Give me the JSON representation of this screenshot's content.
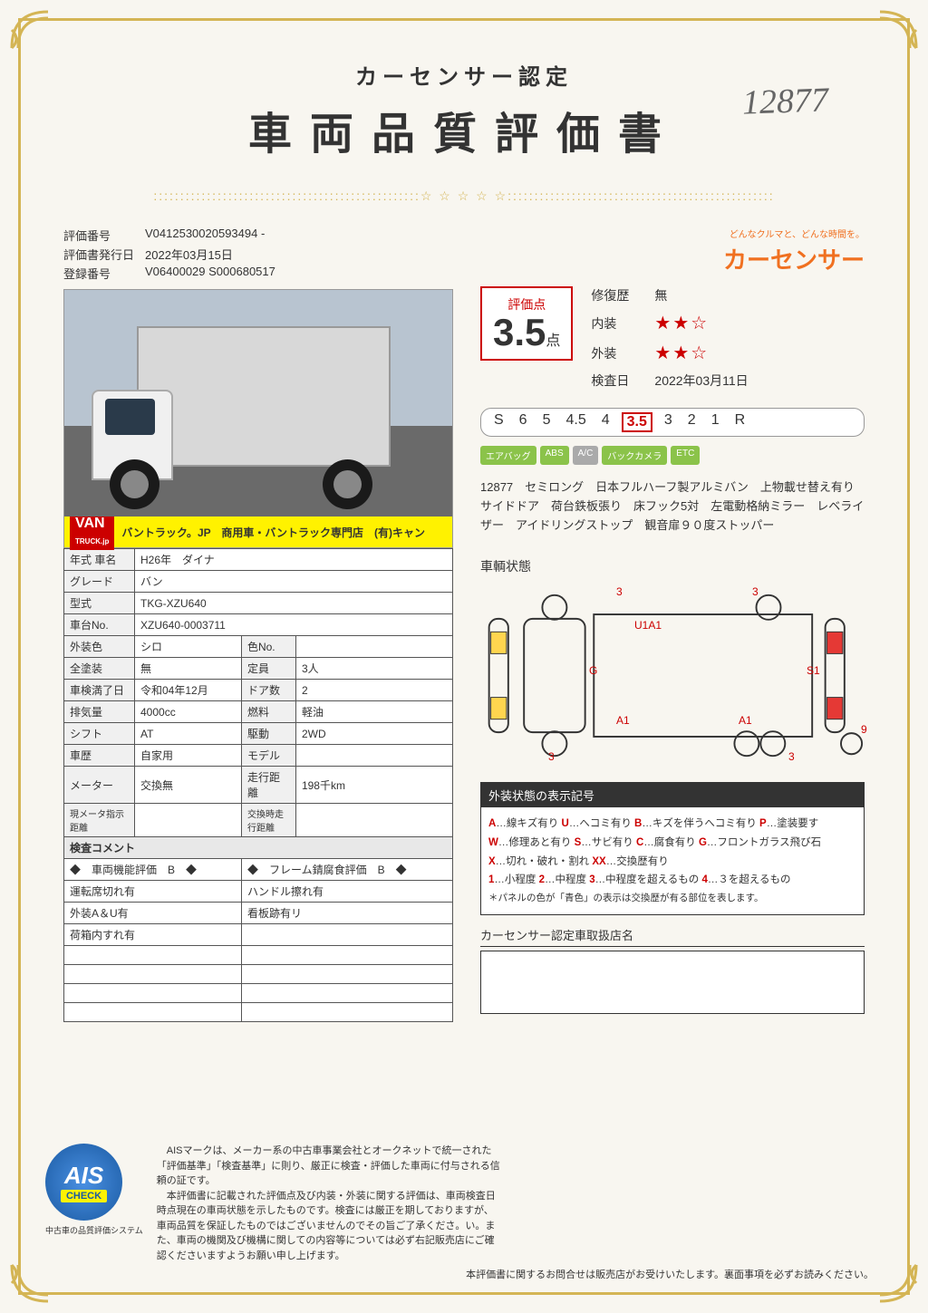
{
  "header": {
    "cert_label": "カーセンサー認定",
    "title": "車両品質評価書",
    "handwritten_id": "12877"
  },
  "brand": {
    "tagline": "どんなクルマと、どんな時間を。",
    "name": "カーセンサー"
  },
  "ids": {
    "eval_no_lbl": "評価番号",
    "eval_no": "V0412530020593494 -",
    "issue_date_lbl": "評価書発行日",
    "issue_date": "2022年03月15日",
    "reg_no_lbl": "登録番号",
    "reg_no": "V06400029 S000680517"
  },
  "photo_banner": {
    "logo1": "VAN",
    "logo2": "TRUCK.jp",
    "text": "バントラック。JP　商用車・バントラック専門店　(有)キャン"
  },
  "specs": {
    "year_name_lbl": "年式 車名",
    "year_name": "H26年　ダイナ",
    "grade_lbl": "グレード",
    "grade": "バン",
    "model_lbl": "型式",
    "model": "TKG-XZU640",
    "chassis_lbl": "車台No.",
    "chassis": "XZU640-0003711",
    "ext_color_lbl": "外装色",
    "ext_color": "シロ",
    "color_no_lbl": "色No.",
    "color_no": "",
    "full_paint_lbl": "全塗装",
    "full_paint": "無",
    "capacity_lbl": "定員",
    "capacity": "3人",
    "inspect_lbl": "車検満了日",
    "inspect": "令和04年12月",
    "doors_lbl": "ドア数",
    "doors": "2",
    "displace_lbl": "排気量",
    "displace": "4000cc",
    "fuel_lbl": "燃料",
    "fuel": "軽油",
    "shift_lbl": "シフト",
    "shift": "AT",
    "drive_lbl": "駆動",
    "drive": "2WD",
    "history_lbl": "車歴",
    "history": "自家用",
    "modelc_lbl": "モデル",
    "modelc": "",
    "meter_lbl": "メーター",
    "meter": "交換無",
    "mileage_lbl": "走行距離",
    "mileage": "198千km",
    "curr_meter_lbl": "現メータ指示距離",
    "curr_meter": "",
    "swap_meter_lbl": "交換時走行距離",
    "swap_meter": ""
  },
  "inspect": {
    "comment_lbl": "検査コメント",
    "func_lbl": "◆　車両機能評価　B　◆",
    "frame_lbl": "◆　フレーム錆腐食評価　B　◆",
    "r1a": "運転席切れ有",
    "r1b": "ハンドル擦れ有",
    "r2a": "外装A＆U有",
    "r2b": "看板跡有リ",
    "r3a": "荷箱内すれ有",
    "r3b": ""
  },
  "score": {
    "label": "評価点",
    "value": "3.5",
    "unit": "点",
    "repair_lbl": "修復歴",
    "repair": "無",
    "interior_lbl": "内装",
    "interior_stars": "★★☆",
    "exterior_lbl": "外装",
    "exterior_stars": "★★☆",
    "date_lbl": "検査日",
    "date": "2022年03月11日"
  },
  "grade_bar": [
    "S",
    "6",
    "5",
    "4.5",
    "4",
    "3.5",
    "3",
    "2",
    "1",
    "R"
  ],
  "grade_selected": "3.5",
  "features": [
    "エアバッグ",
    "ABS",
    "A/C",
    "バックカメラ",
    "ETC"
  ],
  "description": "12877　セミロング　日本フルハーフ製アルミバン　上物載せ替え有り　サイドドア　荷台鉄板張り　床フック5対　左電動格納ミラー　レベライザー　アイドリングストップ　観音扉９０度ストッパー",
  "diagram": {
    "title": "車輌状態",
    "marks": {
      "m1": "3",
      "m2": "3",
      "m3": "U1A1",
      "m4": "G",
      "m5": "S1",
      "m6": "A1",
      "m7": "A1",
      "m8": "3",
      "m9": "3",
      "m10": "9"
    }
  },
  "legend": {
    "title": "外装状態の表示記号",
    "line1": "A…線キズ有り U…へコミ有り B…キズを伴うへコミ有り P…塗装要す",
    "line2": "W…修理あと有り S…サビ有り C…腐食有り G…フロントガラス飛び石",
    "line3": "X…切れ・破れ・割れ XX…交換歴有り",
    "line4": "1…小程度 2…中程度 3…中程度を超えるもの 4…３を超えるもの",
    "note": "＊パネルの色が「青色」の表示は交換歴が有る部位を表します。"
  },
  "dealer": {
    "title": "カーセンサー認定車取扱店名"
  },
  "ais": {
    "logo1": "AIS",
    "logo2": "CHECK",
    "caption": "中古車の品質評価システム",
    "text": "　AISマークは、メーカー系の中古車事業会社とオークネットで統一された「評価基準」「検査基準」に則り、厳正に検査・評価した車両に付与される信頼の証です。\n　本評価書に記載された評価点及び内装・外装に関する評価は、車両検査日時点現在の車両状態を示したものです。検査には厳正を期しておりますが、車両品質を保証したものではございませんのでその旨ご了承くださ。い。また、車両の機関及び機構に関しての内容等については必ず右記販売店にご確認くださいますようお願い申し上げます。"
  },
  "footer_note": "本評価書に関するお問合せは販売店がお受けいたします。裏面事項を必ずお読みください。"
}
